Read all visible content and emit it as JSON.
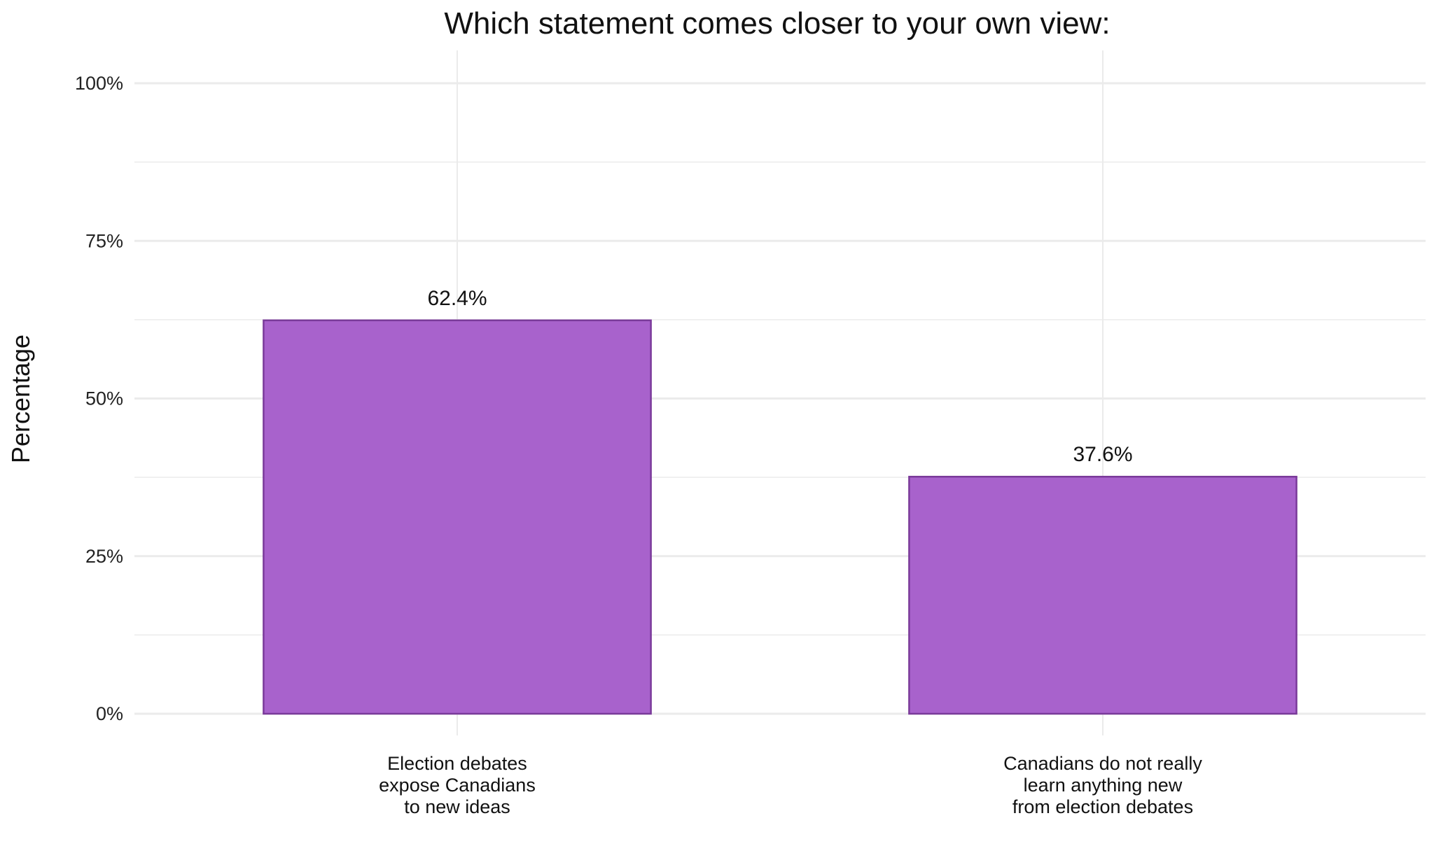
{
  "chart_data": {
    "type": "bar",
    "title": "Which statement comes closer to your own view:",
    "xlabel": "",
    "ylabel": "Percentage",
    "categories": [
      "Election debates expose Canadians to new ideas",
      "Canadians do not really learn anything new from election debates"
    ],
    "category_lines": [
      [
        "Election debates",
        "expose Canadians",
        "to new ideas"
      ],
      [
        "Canadians do not really",
        "learn anything new",
        "from election debates"
      ]
    ],
    "values": [
      62.4,
      37.6
    ],
    "data_labels": [
      "62.4%",
      "37.6%"
    ],
    "ylim": [
      0,
      100
    ],
    "y_ticks": [
      0,
      25,
      50,
      75,
      100
    ],
    "y_tick_labels": [
      "0%",
      "25%",
      "50%",
      "75%",
      "100%"
    ],
    "grid": true,
    "legend": "none",
    "colors": {
      "bar_fill": "#a862cc",
      "bar_stroke": "#7a3a9a",
      "grid": "#ebebeb"
    }
  }
}
